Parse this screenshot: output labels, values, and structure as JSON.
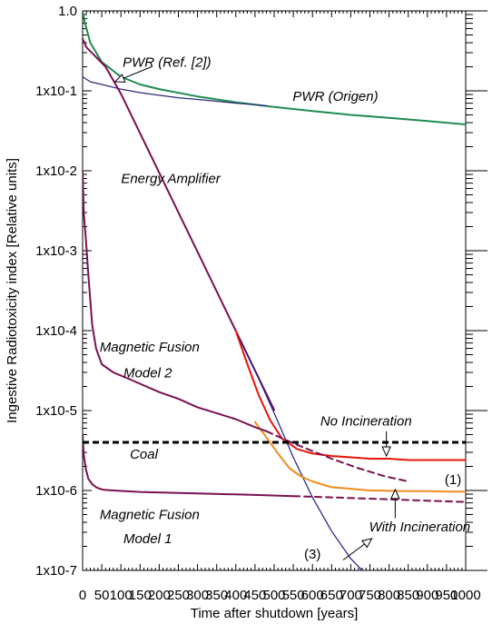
{
  "chart_data": {
    "type": "line",
    "xlabel": "Time after shutdown [years]",
    "ylabel": "Ingestive Radiotoxicity index [Relative units]",
    "xlim": [
      0,
      1000
    ],
    "ylim": [
      1e-07,
      1
    ],
    "yscale": "log",
    "x_ticks": [
      0,
      50,
      100,
      150,
      200,
      250,
      300,
      350,
      400,
      450,
      500,
      550,
      600,
      650,
      700,
      750,
      800,
      850,
      900,
      950,
      1000
    ],
    "x_tick_labels": [
      "0",
      "50",
      "100",
      "150",
      "200",
      "250",
      "300",
      "350",
      "400",
      "450",
      "500",
      "550",
      "600",
      "650",
      "700",
      "750",
      "800",
      "850",
      "900",
      "950",
      "1000"
    ],
    "y_ticks": [
      1,
      0.1,
      0.01,
      0.001,
      0.0001,
      1e-05,
      1e-06,
      1e-07
    ],
    "y_tick_labels": [
      "1.0",
      "1x10-1",
      "1x10-2",
      "1x10-3",
      "1x10-4",
      "1x10-5",
      "1x10-6",
      "1x10-7"
    ],
    "grid": false,
    "series": [
      {
        "name": "PWR (Origen)",
        "color": "#1e8c4e",
        "style": "solid",
        "x": [
          0,
          5,
          20,
          50,
          100,
          150,
          200,
          300,
          400,
          500,
          600,
          700,
          800,
          900,
          1000
        ],
        "y": [
          1.0,
          0.75,
          0.4,
          0.23,
          0.15,
          0.12,
          0.105,
          0.085,
          0.072,
          0.063,
          0.056,
          0.05,
          0.046,
          0.042,
          0.038
        ]
      },
      {
        "name": "PWR (Ref. [2])",
        "color": "#2a2a7a",
        "style": "solid",
        "x": [
          0,
          20,
          50,
          100,
          150,
          200,
          250,
          300,
          350,
          400,
          450,
          480
        ],
        "y": [
          0.15,
          0.13,
          0.12,
          0.105,
          0.095,
          0.088,
          0.082,
          0.078,
          0.074,
          0.07,
          0.067,
          0.065
        ]
      },
      {
        "name": "Energy Amplifier",
        "color": "#7a1050",
        "style": "solid",
        "x": [
          0,
          10,
          30,
          60,
          100,
          150,
          200,
          250,
          300,
          350,
          400,
          450,
          500
        ],
        "y": [
          0.45,
          0.35,
          0.28,
          0.2,
          0.092,
          0.0295,
          0.00945,
          0.00302,
          0.00097,
          0.00031,
          9.91e-05,
          3.18e-05,
          1.02e-05
        ]
      },
      {
        "name": "EA continuation (blue)",
        "color": "#1c1c8a",
        "style": "solid",
        "x": [
          400,
          450,
          500,
          550,
          600,
          650,
          700,
          730
        ],
        "y": [
          9.91e-05,
          3.18e-05,
          9.3e-06,
          2.6e-06,
          8.2e-07,
          3.1e-07,
          1.4e-07,
          1e-07
        ]
      },
      {
        "name": "No Incineration",
        "color": "#e8140a",
        "style": "solid",
        "x": [
          400,
          430,
          460,
          490,
          520,
          560,
          600,
          650,
          700,
          750,
          800,
          850,
          900,
          950,
          1000
        ],
        "y": [
          9.9e-05,
          3.8e-05,
          1.55e-05,
          7.5e-06,
          4.5e-06,
          3.3e-06,
          2.9e-06,
          2.7e-06,
          2.6e-06,
          2.5e-06,
          2.5e-06,
          2.4e-06,
          2.4e-06,
          2.4e-06,
          2.4e-06
        ]
      },
      {
        "name": "With Incineration",
        "color": "#f08c1e",
        "style": "solid",
        "x": [
          450,
          480,
          510,
          540,
          570,
          600,
          650,
          700,
          750,
          800,
          850,
          900,
          950,
          1000
        ],
        "y": [
          7.2e-06,
          4.6e-06,
          2.9e-06,
          1.9e-06,
          1.5e-06,
          1.3e-06,
          1.1e-06,
          1.05e-06,
          1e-06,
          9.9e-07,
          9.8e-07,
          9.8e-07,
          9.7e-07,
          9.7e-07
        ]
      },
      {
        "name": "Magnetic Fusion Model 2",
        "color": "#7a1050",
        "style": "solid",
        "x": [
          0,
          3,
          8,
          15,
          25,
          35,
          50,
          80,
          120,
          200,
          250,
          300,
          400,
          450,
          480
        ],
        "y": [
          0.01,
          0.003,
          0.0015,
          0.0005,
          0.00012,
          6e-05,
          3.8e-05,
          3e-05,
          2.5e-05,
          1.7e-05,
          1.4e-05,
          1.1e-05,
          7.8e-06,
          6.2e-06,
          5.5e-06
        ]
      },
      {
        "name": "Magnetic Fusion Model 2 (dashed)",
        "color": "#7a1050",
        "style": "dashed",
        "x": [
          480,
          520,
          580,
          650,
          720,
          790,
          850
        ],
        "y": [
          5.5e-06,
          4.5e-06,
          3.4e-06,
          2.5e-06,
          1.9e-06,
          1.5e-06,
          1.3e-06
        ]
      },
      {
        "name": "Magnetic Fusion Model 1",
        "color": "#7a1050",
        "style": "solid",
        "x": [
          0,
          3,
          8,
          15,
          25,
          35,
          45,
          55,
          80,
          150,
          300,
          450,
          550
        ],
        "y": [
          5e-06,
          2.8e-06,
          1.9e-06,
          1.4e-06,
          1.2e-06,
          1.1e-06,
          1.05e-06,
          1.02e-06,
          1e-06,
          9.6e-07,
          9.2e-07,
          8.8e-07,
          8.5e-07
        ]
      },
      {
        "name": "Magnetic Fusion Model 1 (dashed)",
        "color": "#7a1050",
        "style": "dashed",
        "x": [
          550,
          650,
          750,
          850,
          950,
          1000
        ],
        "y": [
          8.5e-07,
          8.2e-07,
          7.9e-07,
          7.6e-07,
          7.3e-07,
          7.2e-07
        ]
      },
      {
        "name": "Coal",
        "color": "#000000",
        "style": "dashed-thick",
        "x": [
          0,
          1000
        ],
        "y": [
          4e-06,
          4e-06
        ]
      }
    ],
    "annotations": [
      {
        "text": "PWR  (Ref. [2])",
        "x": 220,
        "y": 0.2,
        "italic": true
      },
      {
        "text": "PWR (Origen)",
        "x": 660,
        "y": 0.075,
        "italic": true
      },
      {
        "text": "Energy Amplifier",
        "x": 230,
        "y": 0.007,
        "italic": true
      },
      {
        "text": "Magnetic Fusion",
        "x": 175,
        "y": 5.5e-05,
        "italic": true
      },
      {
        "text": "Model 2",
        "x": 170,
        "y": 2.6e-05,
        "italic": true
      },
      {
        "text": "No Incineration",
        "x": 740,
        "y": 6.5e-06,
        "italic": true
      },
      {
        "text": "Coal",
        "x": 160,
        "y": 2.5e-06,
        "italic": true
      },
      {
        "text": "(1)",
        "x": 967,
        "y": 1.2e-06,
        "italic": false
      },
      {
        "text": "Magnetic Fusion",
        "x": 175,
        "y": 4.4e-07,
        "italic": true
      },
      {
        "text": "Model 1",
        "x": 170,
        "y": 2.2e-07,
        "italic": true
      },
      {
        "text": "With Incineration",
        "x": 880,
        "y": 3.1e-07,
        "italic": true
      },
      {
        "text": "(3)",
        "x": 600,
        "y": 1.4e-07,
        "italic": false
      }
    ],
    "arrows": [
      {
        "from": {
          "x": 180,
          "y": 0.2
        },
        "to": {
          "x": 85,
          "y": 0.13
        }
      },
      {
        "from": {
          "x": 793,
          "y": 5.5e-06
        },
        "to": {
          "x": 793,
          "y": 2.7e-06
        }
      },
      {
        "from": {
          "x": 816,
          "y": 4.5e-07
        },
        "to": {
          "x": 816,
          "y": 1.03e-06
        }
      },
      {
        "from": {
          "x": 680,
          "y": 1.35e-07
        },
        "to": {
          "x": 755,
          "y": 2.5e-07
        }
      }
    ]
  }
}
